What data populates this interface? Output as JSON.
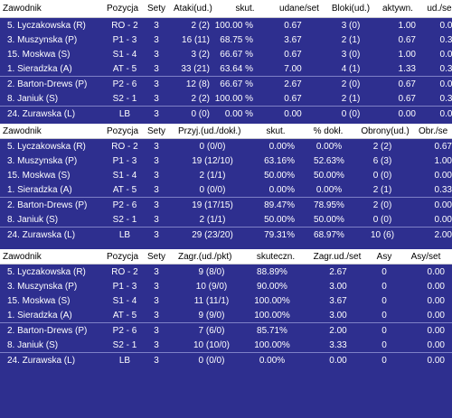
{
  "colors": {
    "background": "#2e2f8f",
    "header_bg": "#ffffff",
    "header_text": "#000000",
    "row_text": "#ffffff"
  },
  "tables": [
    {
      "name": "attack",
      "headers": [
        "Zawodnik",
        "Pozycja",
        "Sety",
        "Ataki(ud.)",
        "skut.",
        "udane/set",
        "Bloki(ud.)",
        "aktywn.",
        "ud./se"
      ],
      "rows": [
        [
          "5. Lyczakowska (R)",
          "RO - 2",
          "3",
          "2 (2)",
          "100.00 %",
          "0.67",
          "3 (0)",
          "1.00",
          "0.00"
        ],
        [
          "3. Muszynska (P)",
          "P1 - 3",
          "3",
          "16 (11)",
          "68.75 %",
          "3.67",
          "2 (1)",
          "0.67",
          "0.33"
        ],
        [
          "15. Moskwa (S)",
          "S1 - 4",
          "3",
          "3 (2)",
          "66.67 %",
          "0.67",
          "3 (0)",
          "1.00",
          "0.00"
        ],
        [
          "1. Sieradzka (A)",
          "AT - 5",
          "3",
          "33 (21)",
          "63.64 %",
          "7.00",
          "4 (1)",
          "1.33",
          "0.33"
        ],
        [
          "2. Barton-Drews (P)",
          "P2 - 6",
          "3",
          "12 (8)",
          "66.67 %",
          "2.67",
          "2 (0)",
          "0.67",
          "0.00"
        ],
        [
          "8. Janiuk (S)",
          "S2 - 1",
          "3",
          "2 (2)",
          "100.00 %",
          "0.67",
          "2 (1)",
          "0.67",
          "0.33"
        ],
        [
          "24. Zurawska (L)",
          "LB",
          "3",
          "0 (0)",
          "0.00 %",
          "0.00",
          "0 (0)",
          "0.00",
          "0.00"
        ]
      ]
    },
    {
      "name": "reception",
      "headers": [
        "Zawodnik",
        "Pozycja",
        "Sety",
        "Przyj.(ud./dokł.)",
        "skut.",
        "% dokł.",
        "Obrony(ud.)",
        "Obr./se"
      ],
      "rows": [
        [
          "5. Lyczakowska (R)",
          "RO - 2",
          "3",
          "0 (0/0)",
          "0.00%",
          "0.00%",
          "2 (2)",
          "0.67"
        ],
        [
          "3. Muszynska (P)",
          "P1 - 3",
          "3",
          "19 (12/10)",
          "63.16%",
          "52.63%",
          "6 (3)",
          "1.00"
        ],
        [
          "15. Moskwa (S)",
          "S1 - 4",
          "3",
          "2 (1/1)",
          "50.00%",
          "50.00%",
          "0 (0)",
          "0.00"
        ],
        [
          "1. Sieradzka (A)",
          "AT - 5",
          "3",
          "0 (0/0)",
          "0.00%",
          "0.00%",
          "2 (1)",
          "0.33"
        ],
        [
          "2. Barton-Drews (P)",
          "P2 - 6",
          "3",
          "19 (17/15)",
          "89.47%",
          "78.95%",
          "2 (0)",
          "0.00"
        ],
        [
          "8. Janiuk (S)",
          "S2 - 1",
          "3",
          "2 (1/1)",
          "50.00%",
          "50.00%",
          "0 (0)",
          "0.00"
        ],
        [
          "24. Zurawska (L)",
          "LB",
          "3",
          "29 (23/20)",
          "79.31%",
          "68.97%",
          "10 (6)",
          "2.00"
        ]
      ]
    },
    {
      "name": "serve",
      "headers": [
        "Zawodnik",
        "Pozycja",
        "Sety",
        "Zagr.(ud./pkt)",
        "skuteczn.",
        "Zagr.ud./set",
        "Asy",
        "Asy/set"
      ],
      "rows": [
        [
          "5. Lyczakowska (R)",
          "RO - 2",
          "3",
          "9 (8/0)",
          "88.89%",
          "2.67",
          "0",
          "0.00"
        ],
        [
          "3. Muszynska (P)",
          "P1 - 3",
          "3",
          "10 (9/0)",
          "90.00%",
          "3.00",
          "0",
          "0.00"
        ],
        [
          "15. Moskwa (S)",
          "S1 - 4",
          "3",
          "11 (11/1)",
          "100.00%",
          "3.67",
          "0",
          "0.00"
        ],
        [
          "1. Sieradzka (A)",
          "AT - 5",
          "3",
          "9 (9/0)",
          "100.00%",
          "3.00",
          "0",
          "0.00"
        ],
        [
          "2. Barton-Drews (P)",
          "P2 - 6",
          "3",
          "7 (6/0)",
          "85.71%",
          "2.00",
          "0",
          "0.00"
        ],
        [
          "8. Janiuk (S)",
          "S2 - 1",
          "3",
          "10 (10/0)",
          "100.00%",
          "3.33",
          "0",
          "0.00"
        ],
        [
          "24. Zurawska (L)",
          "LB",
          "3",
          "0 (0/0)",
          "0.00%",
          "0.00",
          "0",
          "0.00"
        ]
      ]
    }
  ]
}
